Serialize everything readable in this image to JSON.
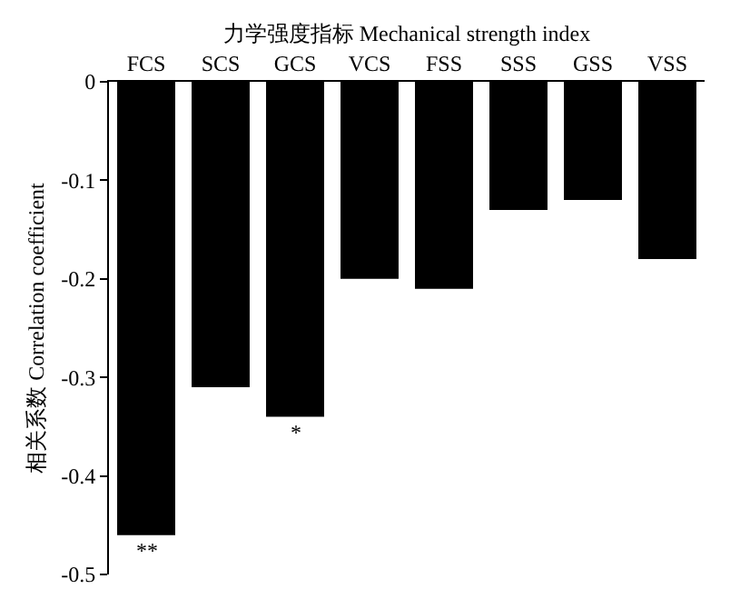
{
  "chart_data": {
    "type": "bar",
    "xlabel": "力学强度指标 Mechanical strength index",
    "ylabel": "相关系数 Correlation coefficient",
    "categories": [
      "FCS",
      "SCS",
      "GCS",
      "VCS",
      "FSS",
      "SSS",
      "GSS",
      "VSS"
    ],
    "values": [
      -0.46,
      -0.31,
      -0.34,
      -0.2,
      -0.21,
      -0.13,
      -0.12,
      -0.18
    ],
    "color": "#000000",
    "ylim": [
      -0.5,
      0
    ],
    "yticks": [
      0,
      -0.1,
      -0.2,
      -0.3,
      -0.4,
      -0.5
    ],
    "grid": false,
    "annotations": [
      {
        "text": "**",
        "x": "FCS",
        "y": -0.46
      },
      {
        "text": "*",
        "x": "GCS",
        "y": -0.34
      }
    ]
  }
}
